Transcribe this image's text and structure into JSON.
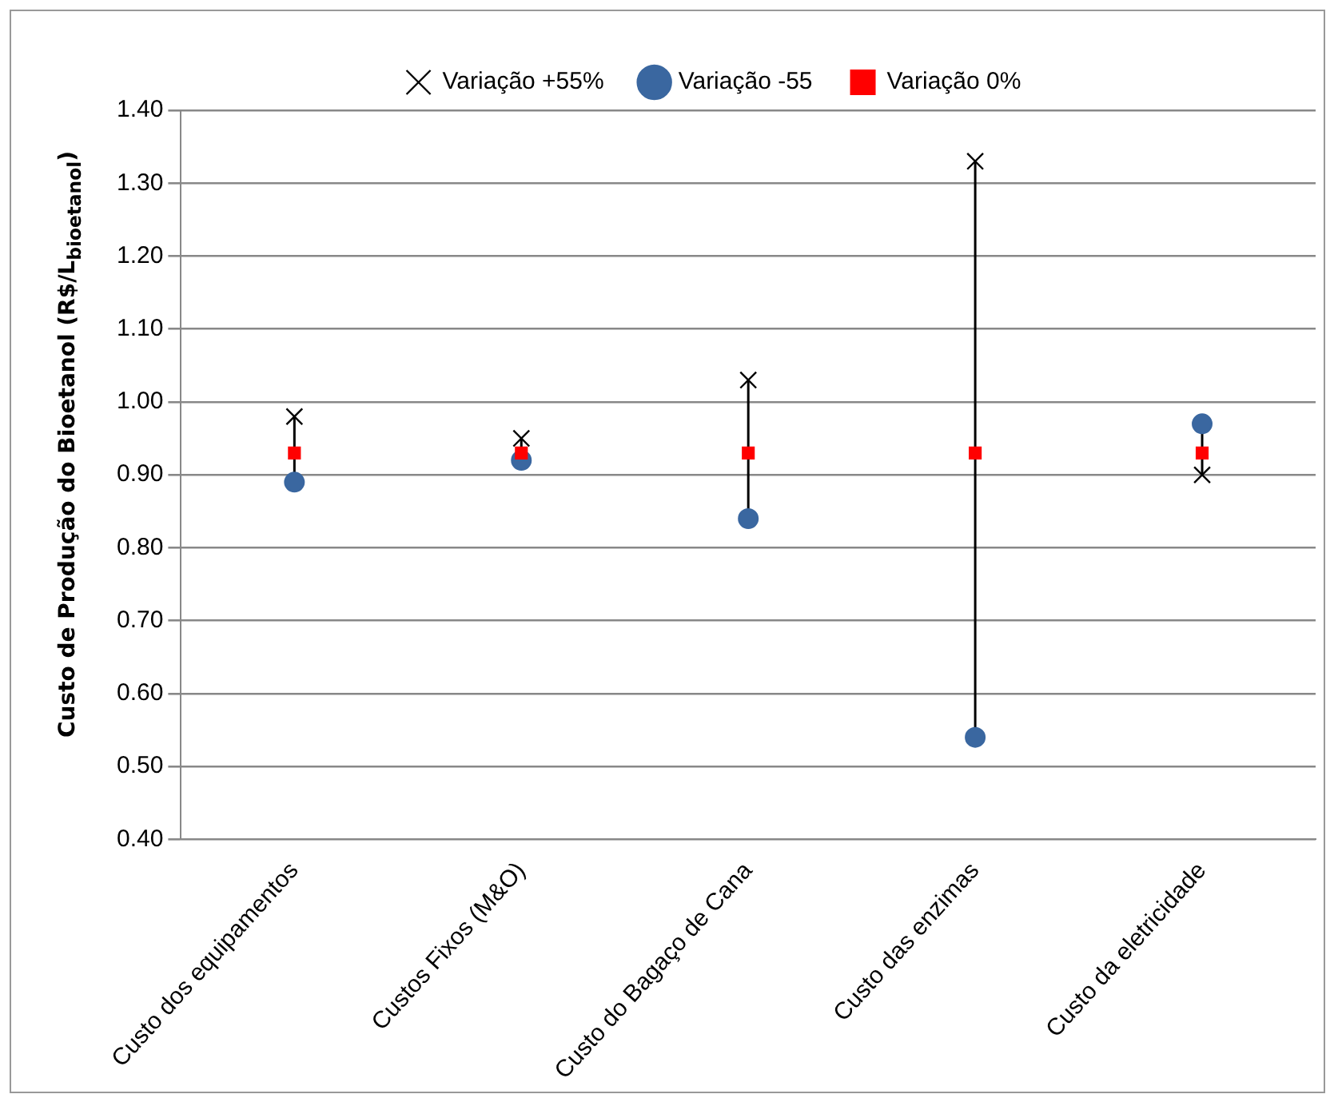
{
  "chart_data": {
    "type": "scatter",
    "ylabel": "Custo de Produção do Bioetanol (R$/L$_{bioetanol}$)",
    "categories": [
      "Custo dos equipamentos",
      "Custos Fixos (M&O)",
      "Custo do Bagaço de Cana",
      "Custo das enzimas",
      "Custo da eletricidade"
    ],
    "series": [
      {
        "name": "Variação +55%",
        "color": "#000000",
        "marker": "cross",
        "values": [
          0.98,
          0.95,
          1.03,
          1.33,
          0.9
        ]
      },
      {
        "name": "Variação -55",
        "color": "#3a67a0",
        "marker": "circle",
        "values": [
          0.89,
          0.92,
          0.84,
          0.54,
          0.97
        ]
      },
      {
        "name": "Variação 0%",
        "color": "#ff0000",
        "marker": "square",
        "values": [
          0.93,
          0.93,
          0.93,
          0.93,
          0.93
        ]
      }
    ],
    "ylim": [
      0.4,
      1.4
    ],
    "yticks": [
      {
        "value": 0.4,
        "label": "0.40"
      },
      {
        "value": 0.5,
        "label": "0.50"
      },
      {
        "value": 0.6,
        "label": "0.60"
      },
      {
        "value": 0.7,
        "label": "0.70"
      },
      {
        "value": 0.8,
        "label": "0.80"
      },
      {
        "value": 0.9,
        "label": "0.90"
      },
      {
        "value": 1.0,
        "label": "1.00"
      },
      {
        "value": 1.1,
        "label": "1.10"
      },
      {
        "value": 1.2,
        "label": "1.20"
      },
      {
        "value": 1.3,
        "label": "1.30"
      },
      {
        "value": 1.4,
        "label": "1.40"
      }
    ],
    "grid": "y",
    "legend": "top"
  }
}
